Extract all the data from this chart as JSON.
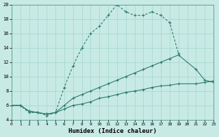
{
  "xlabel": "Humidex (Indice chaleur)",
  "bg_color": "#c8eae4",
  "line_color": "#2a7a6a",
  "grid_color": "#a8d8d0",
  "xlim": [
    0,
    23
  ],
  "ylim": [
    4,
    20
  ],
  "xticks": [
    0,
    1,
    2,
    3,
    4,
    5,
    6,
    7,
    8,
    9,
    10,
    11,
    12,
    13,
    14,
    15,
    16,
    17,
    18,
    19,
    20,
    21,
    22,
    23
  ],
  "yticks": [
    4,
    6,
    8,
    10,
    12,
    14,
    16,
    18,
    20
  ],
  "line1_x": [
    0,
    1,
    2,
    3,
    4,
    5,
    6,
    7,
    8,
    9,
    10,
    11,
    12,
    13,
    14,
    15,
    16,
    17,
    18,
    19
  ],
  "line1_y": [
    6,
    6,
    5,
    5,
    4.6,
    5,
    8.5,
    11.5,
    14,
    16,
    17,
    18.5,
    20,
    19,
    18.5,
    18.5,
    19,
    18.5,
    17.5,
    13.2
  ],
  "line2_x": [
    0,
    1,
    2,
    3,
    4,
    5,
    6,
    7,
    8,
    9,
    10,
    11,
    12,
    13,
    14,
    15,
    16,
    17,
    18,
    19,
    21,
    22,
    23
  ],
  "line2_y": [
    6,
    6,
    5.2,
    5,
    4.8,
    5,
    6,
    7,
    7.5,
    8,
    8.5,
    9,
    9.5,
    10,
    10.5,
    11,
    11.5,
    12,
    12.5,
    13,
    11,
    9.5,
    9.2
  ],
  "line3_x": [
    0,
    1,
    2,
    3,
    4,
    5,
    6,
    7,
    8,
    9,
    10,
    11,
    12,
    13,
    14,
    15,
    16,
    17,
    18,
    19,
    21,
    22,
    23
  ],
  "line3_y": [
    6,
    6,
    5.2,
    5,
    4.8,
    5,
    5.5,
    6,
    6.2,
    6.5,
    7,
    7.2,
    7.5,
    7.8,
    8,
    8.2,
    8.5,
    8.7,
    8.8,
    9,
    9,
    9.2,
    9.4
  ]
}
